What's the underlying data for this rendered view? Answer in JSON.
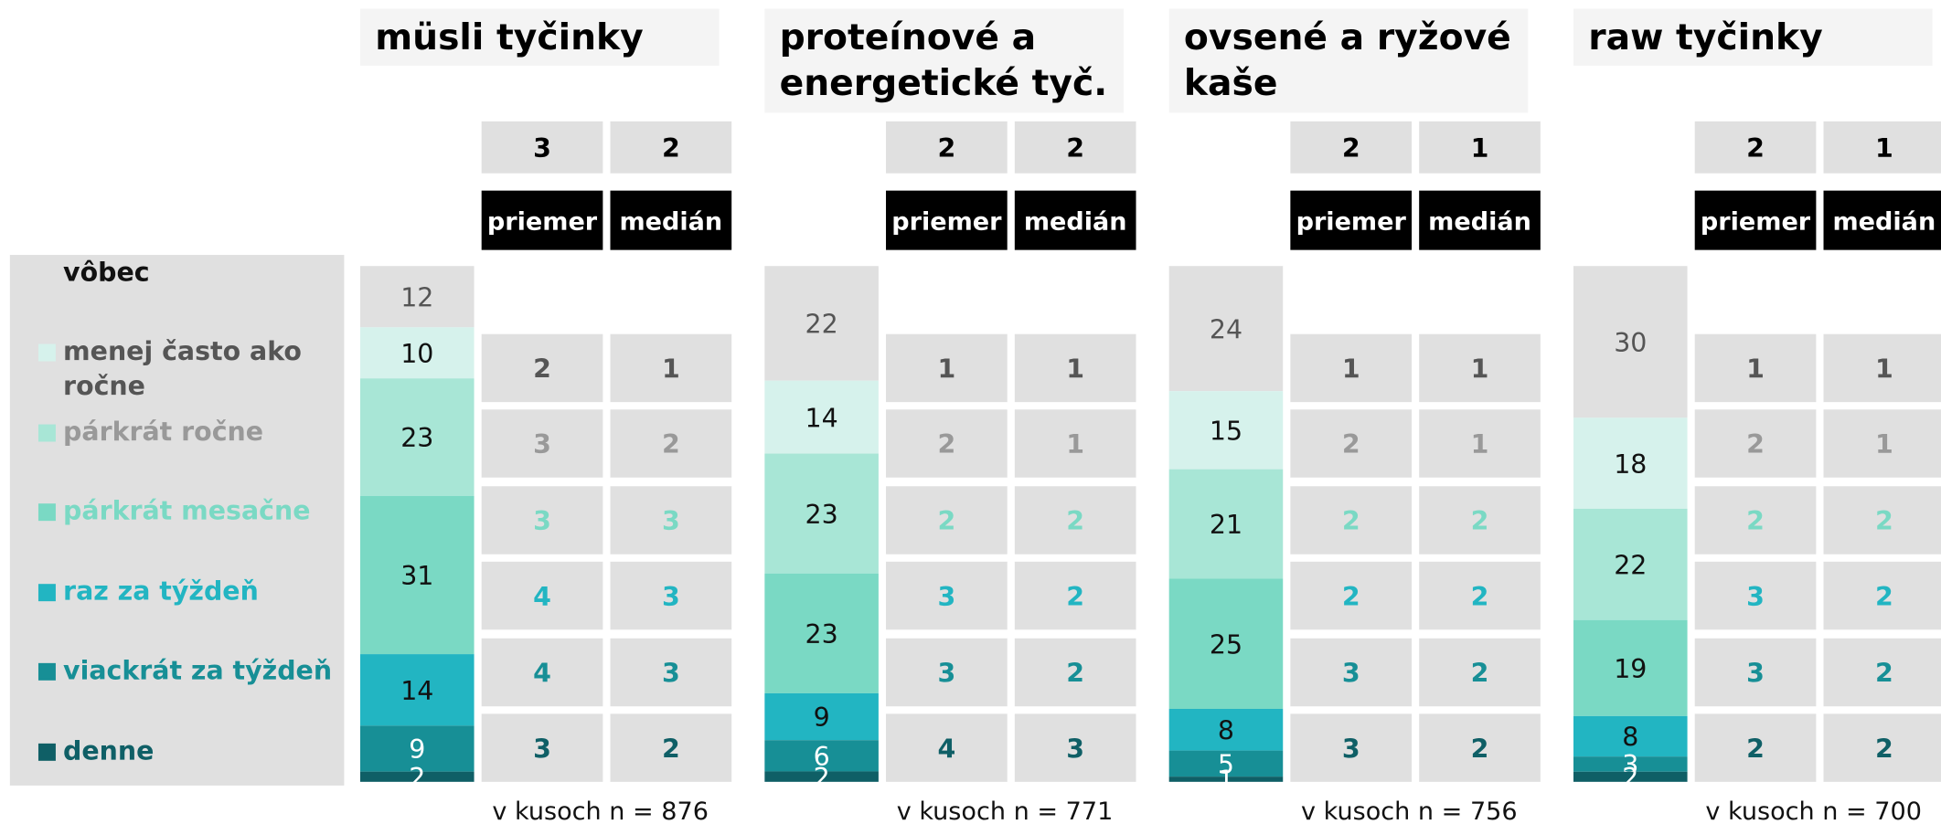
{
  "legend": [
    {
      "label_lines": [
        "vôbec"
      ],
      "color": "#e0e0e0",
      "text_color": "#111111",
      "table_color": "#555555",
      "value_color": "#555555"
    },
    {
      "label_lines": [
        "menej často ako",
        "ročne"
      ],
      "color": "#d6f2ec",
      "text_color": "#555555",
      "table_color": "#999999",
      "value_color": "#111111"
    },
    {
      "label_lines": [
        "párkrát ročne"
      ],
      "color": "#a8e6d6",
      "text_color": "#999999",
      "table_color": "#7ad9c4",
      "value_color": "#111111"
    },
    {
      "label_lines": [
        "párkrát mesačne"
      ],
      "color": "#7ad9c4",
      "text_color": "#7ad9c4",
      "table_color": "#22b5c2",
      "value_color": "#111111"
    },
    {
      "label_lines": [
        "raz za týždeň"
      ],
      "color": "#22b5c2",
      "text_color": "#22b5c2",
      "table_color": "#178f96",
      "value_color": "#111111"
    },
    {
      "label_lines": [
        "viackrát za týždeň"
      ],
      "color": "#178f96",
      "text_color": "#178f96",
      "table_color": "#0f5f66",
      "value_color": "#ffffff"
    },
    {
      "label_lines": [
        "denne"
      ],
      "color": "#0f5f66",
      "text_color": "#0f5f66",
      "value_color": "#ffffff"
    }
  ],
  "panels": [
    {
      "title_lines": [
        "müsli tyčinky"
      ],
      "summary": [
        3,
        2
      ],
      "columns": [
        "priemer",
        "medián"
      ],
      "segments": [
        12,
        10,
        23,
        31,
        14,
        9,
        2
      ],
      "table": [
        [
          2,
          1
        ],
        [
          3,
          2
        ],
        [
          3,
          3
        ],
        [
          4,
          3
        ],
        [
          4,
          3
        ],
        [
          3,
          2
        ]
      ],
      "footnote": "v kusoch n = 876"
    },
    {
      "title_lines": [
        "proteínové a",
        "energetické tyč."
      ],
      "summary": [
        2,
        2
      ],
      "columns": [
        "priemer",
        "medián"
      ],
      "segments": [
        22,
        14,
        23,
        23,
        9,
        6,
        2
      ],
      "table": [
        [
          1,
          1
        ],
        [
          2,
          1
        ],
        [
          2,
          2
        ],
        [
          3,
          2
        ],
        [
          3,
          2
        ],
        [
          4,
          3
        ]
      ],
      "footnote": "v kusoch n = 771"
    },
    {
      "title_lines": [
        "ovsené a ryžové",
        "kaše"
      ],
      "summary": [
        2,
        1
      ],
      "columns": [
        "priemer",
        "medián"
      ],
      "segments": [
        24,
        15,
        21,
        25,
        8,
        5,
        1
      ],
      "table": [
        [
          1,
          1
        ],
        [
          2,
          1
        ],
        [
          2,
          2
        ],
        [
          2,
          2
        ],
        [
          3,
          2
        ],
        [
          3,
          2
        ]
      ],
      "footnote": "v kusoch n = 756"
    },
    {
      "title_lines": [
        "raw tyčinky"
      ],
      "summary": [
        2,
        1
      ],
      "columns": [
        "priemer",
        "medián"
      ],
      "segments": [
        30,
        18,
        22,
        19,
        8,
        3,
        2
      ],
      "table": [
        [
          1,
          1
        ],
        [
          2,
          1
        ],
        [
          2,
          2
        ],
        [
          3,
          2
        ],
        [
          3,
          2
        ],
        [
          2,
          2
        ]
      ],
      "footnote": "v kusoch n = 700"
    }
  ]
}
